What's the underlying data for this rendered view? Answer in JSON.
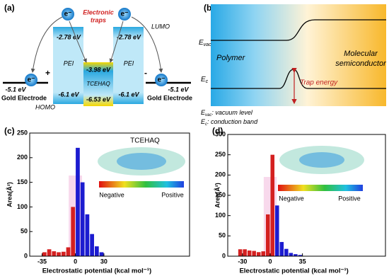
{
  "panels": {
    "a": {
      "label": "(a)",
      "electron": "e⁻",
      "left_energy": "-5.1 eV",
      "right_energy": "-5.1 eV",
      "left_electrode": "Gold Electrode",
      "right_electrode": "Gold Electrode",
      "plus": "+",
      "minus": "-",
      "pei_left": {
        "top": "-2.78 eV",
        "name": "PEI",
        "bottom": "-6.1 eV"
      },
      "tcehaq": {
        "top": "-3.98 eV",
        "name": "TCEHAQ",
        "bottom": "-6.53 eV"
      },
      "pei_right": {
        "top": "-2.78 eV",
        "name": "PEI",
        "bottom": "-6.1 eV"
      },
      "traps": [
        "Electronic",
        "traps"
      ],
      "lumo": "LUMO",
      "homo": "HOMO"
    },
    "b": {
      "label": "(b)",
      "evac": {
        "symbol": "E",
        "sub": "vac"
      },
      "ec": {
        "symbol": "E",
        "sub": "c"
      },
      "polymer": "Polymer",
      "semiconductor": [
        "Molecular",
        "semiconductor"
      ],
      "trap": "Trap energy",
      "legend": [
        {
          "symbol": "E",
          "sub": "vac",
          "text": ": vacuum level"
        },
        {
          "symbol": "E",
          "sub": "c",
          "text": ": conduction band"
        }
      ]
    },
    "c": {
      "label": "(c)",
      "molecule": "TCEHAQ",
      "negative": "Negative",
      "positive": "Positive"
    },
    "d": {
      "label": "(d)",
      "negative": "Negative",
      "positive": "Positive"
    }
  },
  "chart_data": [
    {
      "type": "histogram",
      "xlabel": "Electrostatic potential (kcal mol⁻¹)",
      "ylabel": "Area(Å²)",
      "bins": [
        -35,
        -30,
        -25,
        -20,
        -15,
        -10,
        -5,
        0,
        5,
        10,
        15,
        20,
        25,
        30
      ],
      "counts": [
        8,
        14,
        10,
        8,
        9,
        18,
        100,
        220,
        150,
        85,
        45,
        20,
        8
      ],
      "colors": [
        "#d42020",
        "#d42020",
        "#d42020",
        "#d42020",
        "#d42020",
        "#d42020",
        "#d42020",
        "#1c1cd0",
        "#1c1cd0",
        "#1c1cd0",
        "#1c1cd0",
        "#1c1cd0",
        "#1c1cd0"
      ],
      "xlim": [
        -48,
        120
      ],
      "xticks": [
        -35,
        0,
        30
      ],
      "ylim": [
        0,
        250
      ],
      "yticks": [
        0,
        50,
        100,
        150,
        200,
        250
      ]
    },
    {
      "type": "histogram",
      "xlabel": "Electrostatic potential (kcal mol⁻¹)",
      "ylabel": "Area(Å²)",
      "bins": [
        -35,
        -30,
        -25,
        -20,
        -15,
        -10,
        -5,
        0,
        5,
        10,
        15,
        20,
        25,
        30,
        35
      ],
      "counts": [
        17,
        17,
        14,
        13,
        10,
        12,
        103,
        250,
        125,
        35,
        18,
        8,
        5,
        3
      ],
      "colors": [
        "#d42020",
        "#d42020",
        "#d42020",
        "#d42020",
        "#d42020",
        "#d42020",
        "#d42020",
        "#d42020",
        "#1c1cd0",
        "#1c1cd0",
        "#1c1cd0",
        "#1c1cd0",
        "#1c1cd0",
        "#1c1cd0"
      ],
      "xlim": [
        -46,
        125
      ],
      "xticks": [
        -30,
        0,
        35
      ],
      "ylim": [
        0,
        300
      ],
      "yticks": [
        0,
        50,
        100,
        150,
        200,
        250,
        300
      ]
    }
  ]
}
